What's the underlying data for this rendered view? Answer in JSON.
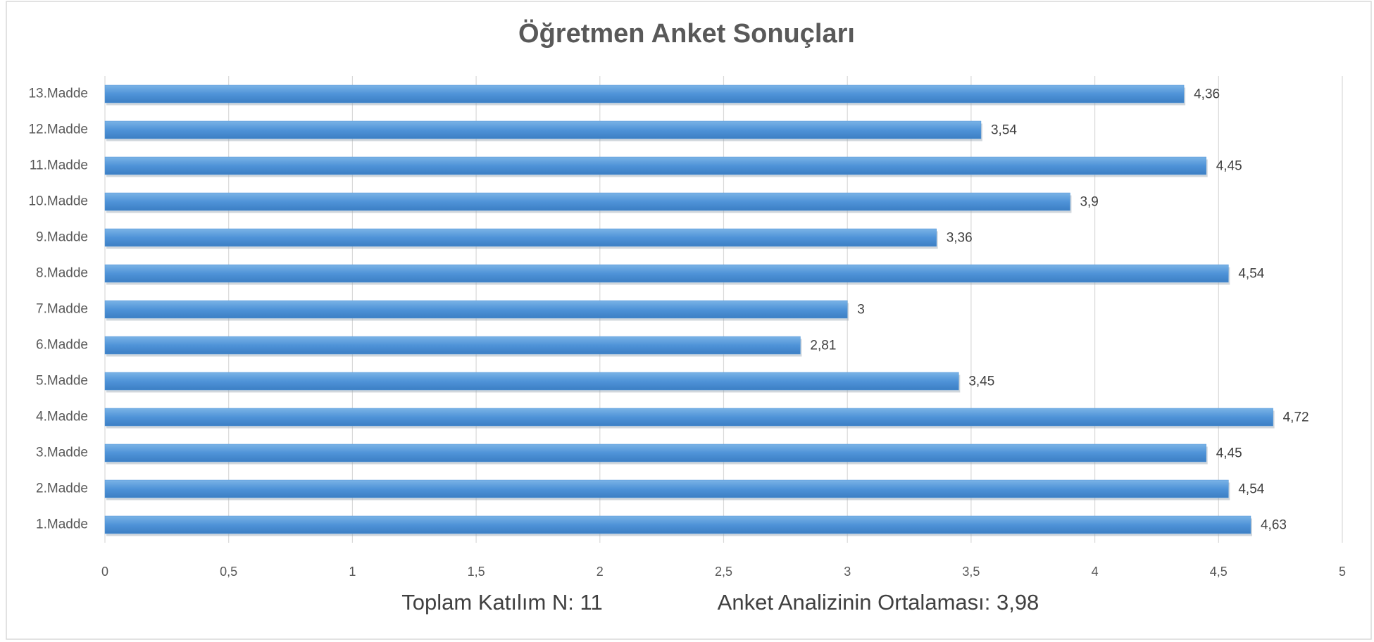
{
  "chart_data": {
    "type": "bar",
    "orientation": "horizontal",
    "title": "Öğretmen Anket Sonuçları",
    "categories": [
      "1.Madde",
      "2.Madde",
      "3.Madde",
      "4.Madde",
      "5.Madde",
      "6.Madde",
      "7.Madde",
      "8.Madde",
      "9.Madde",
      "10.Madde",
      "11.Madde",
      "12.Madde",
      "13.Madde"
    ],
    "values": [
      4.63,
      4.54,
      4.45,
      4.72,
      3.45,
      2.81,
      3,
      4.54,
      3.36,
      3.9,
      4.45,
      3.54,
      4.36
    ],
    "value_labels": [
      "4,63",
      "4,54",
      "4,45",
      "4,72",
      "3,45",
      "2,81",
      "3",
      "4,54",
      "3,36",
      "3,9",
      "4,45",
      "3,54",
      "4,36"
    ],
    "color": "#5096d9",
    "xlim": [
      0,
      5
    ],
    "xticks": [
      0,
      {
        "value": 0.5,
        "label": "0,5"
      },
      1,
      {
        "value": 1.5,
        "label": "1,5"
      },
      2,
      {
        "value": 2.5,
        "label": "2,5"
      },
      3,
      {
        "value": 3.5,
        "label": "3,5"
      },
      4,
      {
        "value": 4.5,
        "label": "4,5"
      },
      5
    ],
    "grid": true,
    "annotations": [
      "Toplam Katılım N: 11",
      "Anket Analizinin Ortalaması: 3,98"
    ]
  }
}
